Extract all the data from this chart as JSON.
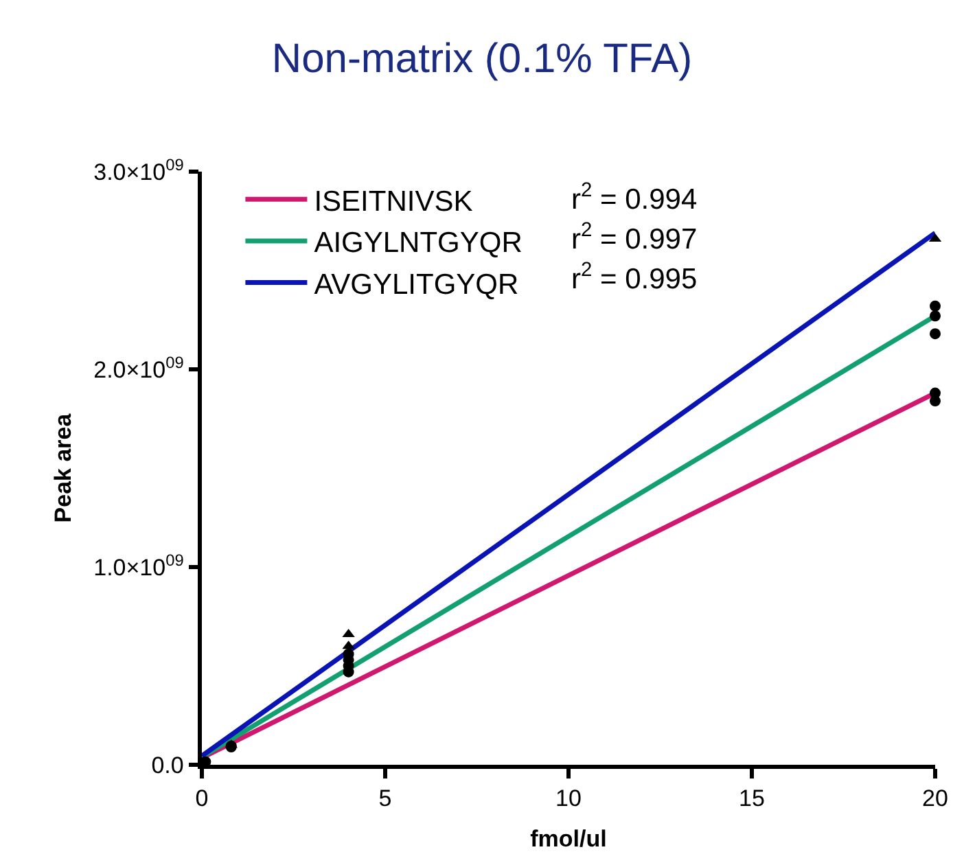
{
  "chart_data": {
    "type": "scatter",
    "title": "Non-matrix (0.1% TFA)",
    "xlabel": "fmol/ul",
    "ylabel": "Peak area",
    "xlim": [
      0,
      20
    ],
    "ylim": [
      0,
      3000000000
    ],
    "xticks": [
      0,
      5,
      10,
      15,
      20
    ],
    "yticks": [
      {
        "value": 0,
        "label": "0.0"
      },
      {
        "value": 1000000000,
        "label": "1.0×10$^{09}$"
      },
      {
        "value": 2000000000,
        "label": "2.0×10$^{09}$"
      },
      {
        "value": 3000000000,
        "label": "3.0×10$^{09}$"
      }
    ],
    "legend": "top left",
    "annotations": [
      "r$^{2}$ = 0.994",
      "r$^{2}$ = 0.997",
      "r$^{2}$ = 0.995"
    ],
    "series": [
      {
        "type": "line",
        "name": "ISEITNIVSK",
        "color": "#d0186e",
        "marker": "none",
        "x": [
          0,
          20
        ],
        "values": [
          35000000,
          1880000000
        ]
      },
      {
        "type": "line",
        "name": "AIGYLNTGYQR",
        "color": "#12a070",
        "marker": "none",
        "x": [
          0,
          20
        ],
        "values": [
          40000000,
          2270000000
        ]
      },
      {
        "type": "line",
        "name": "AVGYLITGYQR",
        "color": "#0a14b4",
        "marker": "none",
        "x": [
          0,
          20
        ],
        "values": [
          45000000,
          2690000000
        ]
      },
      {
        "color": "#000000",
        "marker": "circle",
        "x": [
          0.8,
          4,
          4,
          20,
          20
        ],
        "values": [
          90000000,
          470000000,
          500000000,
          1840000000,
          1880000000
        ]
      },
      {
        "color": "#000000",
        "marker": "circle",
        "x": [
          0.1,
          0.8,
          4,
          4,
          20,
          20,
          20
        ],
        "values": [
          15000000,
          95000000,
          530000000,
          560000000,
          2180000000,
          2270000000,
          2320000000
        ]
      },
      {
        "color": "#000000",
        "marker": "triangle",
        "x": [
          0.8,
          4,
          4,
          20
        ],
        "values": [
          100000000,
          600000000,
          660000000,
          2660000000
        ]
      }
    ]
  }
}
